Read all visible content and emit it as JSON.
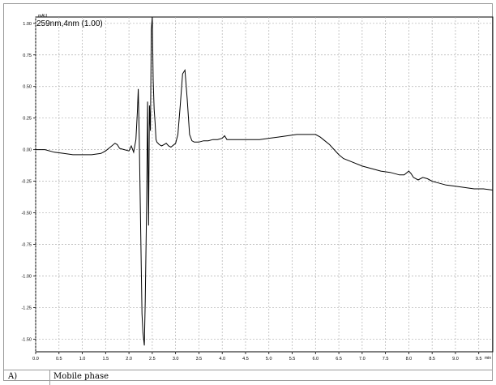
{
  "chart_data": {
    "type": "line",
    "title": "259nm,4nm (1.00)",
    "ylabel": "mAU",
    "xlabel": "min",
    "xlim": [
      0.0,
      9.8
    ],
    "ylim": [
      -1.6,
      1.05
    ],
    "grid": true,
    "x_ticks": [
      0.0,
      0.5,
      1.0,
      1.5,
      2.0,
      2.5,
      3.0,
      3.5,
      4.0,
      4.5,
      5.0,
      5.5,
      6.0,
      6.5,
      7.0,
      7.5,
      8.0,
      8.5,
      9.0,
      9.5
    ],
    "x_tick_labels": [
      "0.0",
      "0.5",
      "1.0",
      "1.5",
      "2.0",
      "2.5",
      "3.0",
      "3.5",
      "4.0",
      "4.5",
      "5.0",
      "5.5",
      "6.0",
      "6.5",
      "7.0",
      "7.5",
      "8.0",
      "8.5",
      "9.0",
      "9.5"
    ],
    "y_ticks": [
      1.0,
      0.75,
      0.5,
      0.25,
      0.0,
      -0.25,
      -0.5,
      -0.75,
      -1.0,
      -1.25,
      -1.5
    ],
    "y_tick_labels": [
      "1.00",
      "0.75",
      "0.50",
      "0.25",
      "0.00",
      "-0.25",
      "-0.50",
      "-0.75",
      "-1.00",
      "-1.25",
      "-1.50"
    ],
    "series": [
      {
        "color": "#000000",
        "x": [
          0.0,
          0.2,
          0.4,
          0.6,
          0.8,
          1.0,
          1.2,
          1.4,
          1.5,
          1.6,
          1.7,
          1.75,
          1.8,
          1.9,
          2.0,
          2.05,
          2.1,
          2.15,
          2.18,
          2.2,
          2.22,
          2.25,
          2.28,
          2.3,
          2.33,
          2.35,
          2.38,
          2.4,
          2.42,
          2.44,
          2.46,
          2.48,
          2.5,
          2.52,
          2.54,
          2.56,
          2.58,
          2.6,
          2.65,
          2.7,
          2.75,
          2.8,
          2.85,
          2.9,
          3.0,
          3.05,
          3.1,
          3.15,
          3.2,
          3.25,
          3.3,
          3.35,
          3.4,
          3.5,
          3.6,
          3.7,
          3.8,
          3.9,
          4.0,
          4.05,
          4.1,
          4.2,
          4.4,
          4.6,
          4.8,
          5.0,
          5.2,
          5.4,
          5.6,
          5.8,
          6.0,
          6.1,
          6.2,
          6.3,
          6.4,
          6.5,
          6.6,
          6.8,
          7.0,
          7.2,
          7.4,
          7.6,
          7.8,
          7.9,
          8.0,
          8.05,
          8.1,
          8.2,
          8.3,
          8.4,
          8.5,
          8.6,
          8.8,
          9.0,
          9.2,
          9.4,
          9.6,
          9.8
        ],
        "y": [
          0.0,
          0.0,
          -0.02,
          -0.03,
          -0.04,
          -0.04,
          -0.04,
          -0.03,
          -0.01,
          0.02,
          0.05,
          0.04,
          0.01,
          0.0,
          -0.01,
          0.03,
          -0.02,
          0.08,
          0.3,
          0.48,
          0.1,
          -0.6,
          -1.3,
          -1.45,
          -1.55,
          -1.2,
          -0.4,
          0.38,
          -0.6,
          0.35,
          0.15,
          0.95,
          1.05,
          0.55,
          0.32,
          0.22,
          0.08,
          0.06,
          0.04,
          0.03,
          0.04,
          0.05,
          0.03,
          0.02,
          0.05,
          0.12,
          0.35,
          0.6,
          0.63,
          0.4,
          0.12,
          0.07,
          0.06,
          0.06,
          0.07,
          0.07,
          0.08,
          0.08,
          0.09,
          0.11,
          0.08,
          0.08,
          0.08,
          0.08,
          0.08,
          0.09,
          0.1,
          0.11,
          0.12,
          0.12,
          0.12,
          0.1,
          0.07,
          0.04,
          0.0,
          -0.04,
          -0.07,
          -0.1,
          -0.13,
          -0.15,
          -0.17,
          -0.18,
          -0.2,
          -0.2,
          -0.17,
          -0.19,
          -0.22,
          -0.24,
          -0.22,
          -0.23,
          -0.25,
          -0.26,
          -0.28,
          -0.29,
          -0.3,
          -0.31,
          -0.31,
          -0.32
        ]
      }
    ]
  },
  "caption": {
    "label": "A)",
    "text": "Mobile phase"
  }
}
